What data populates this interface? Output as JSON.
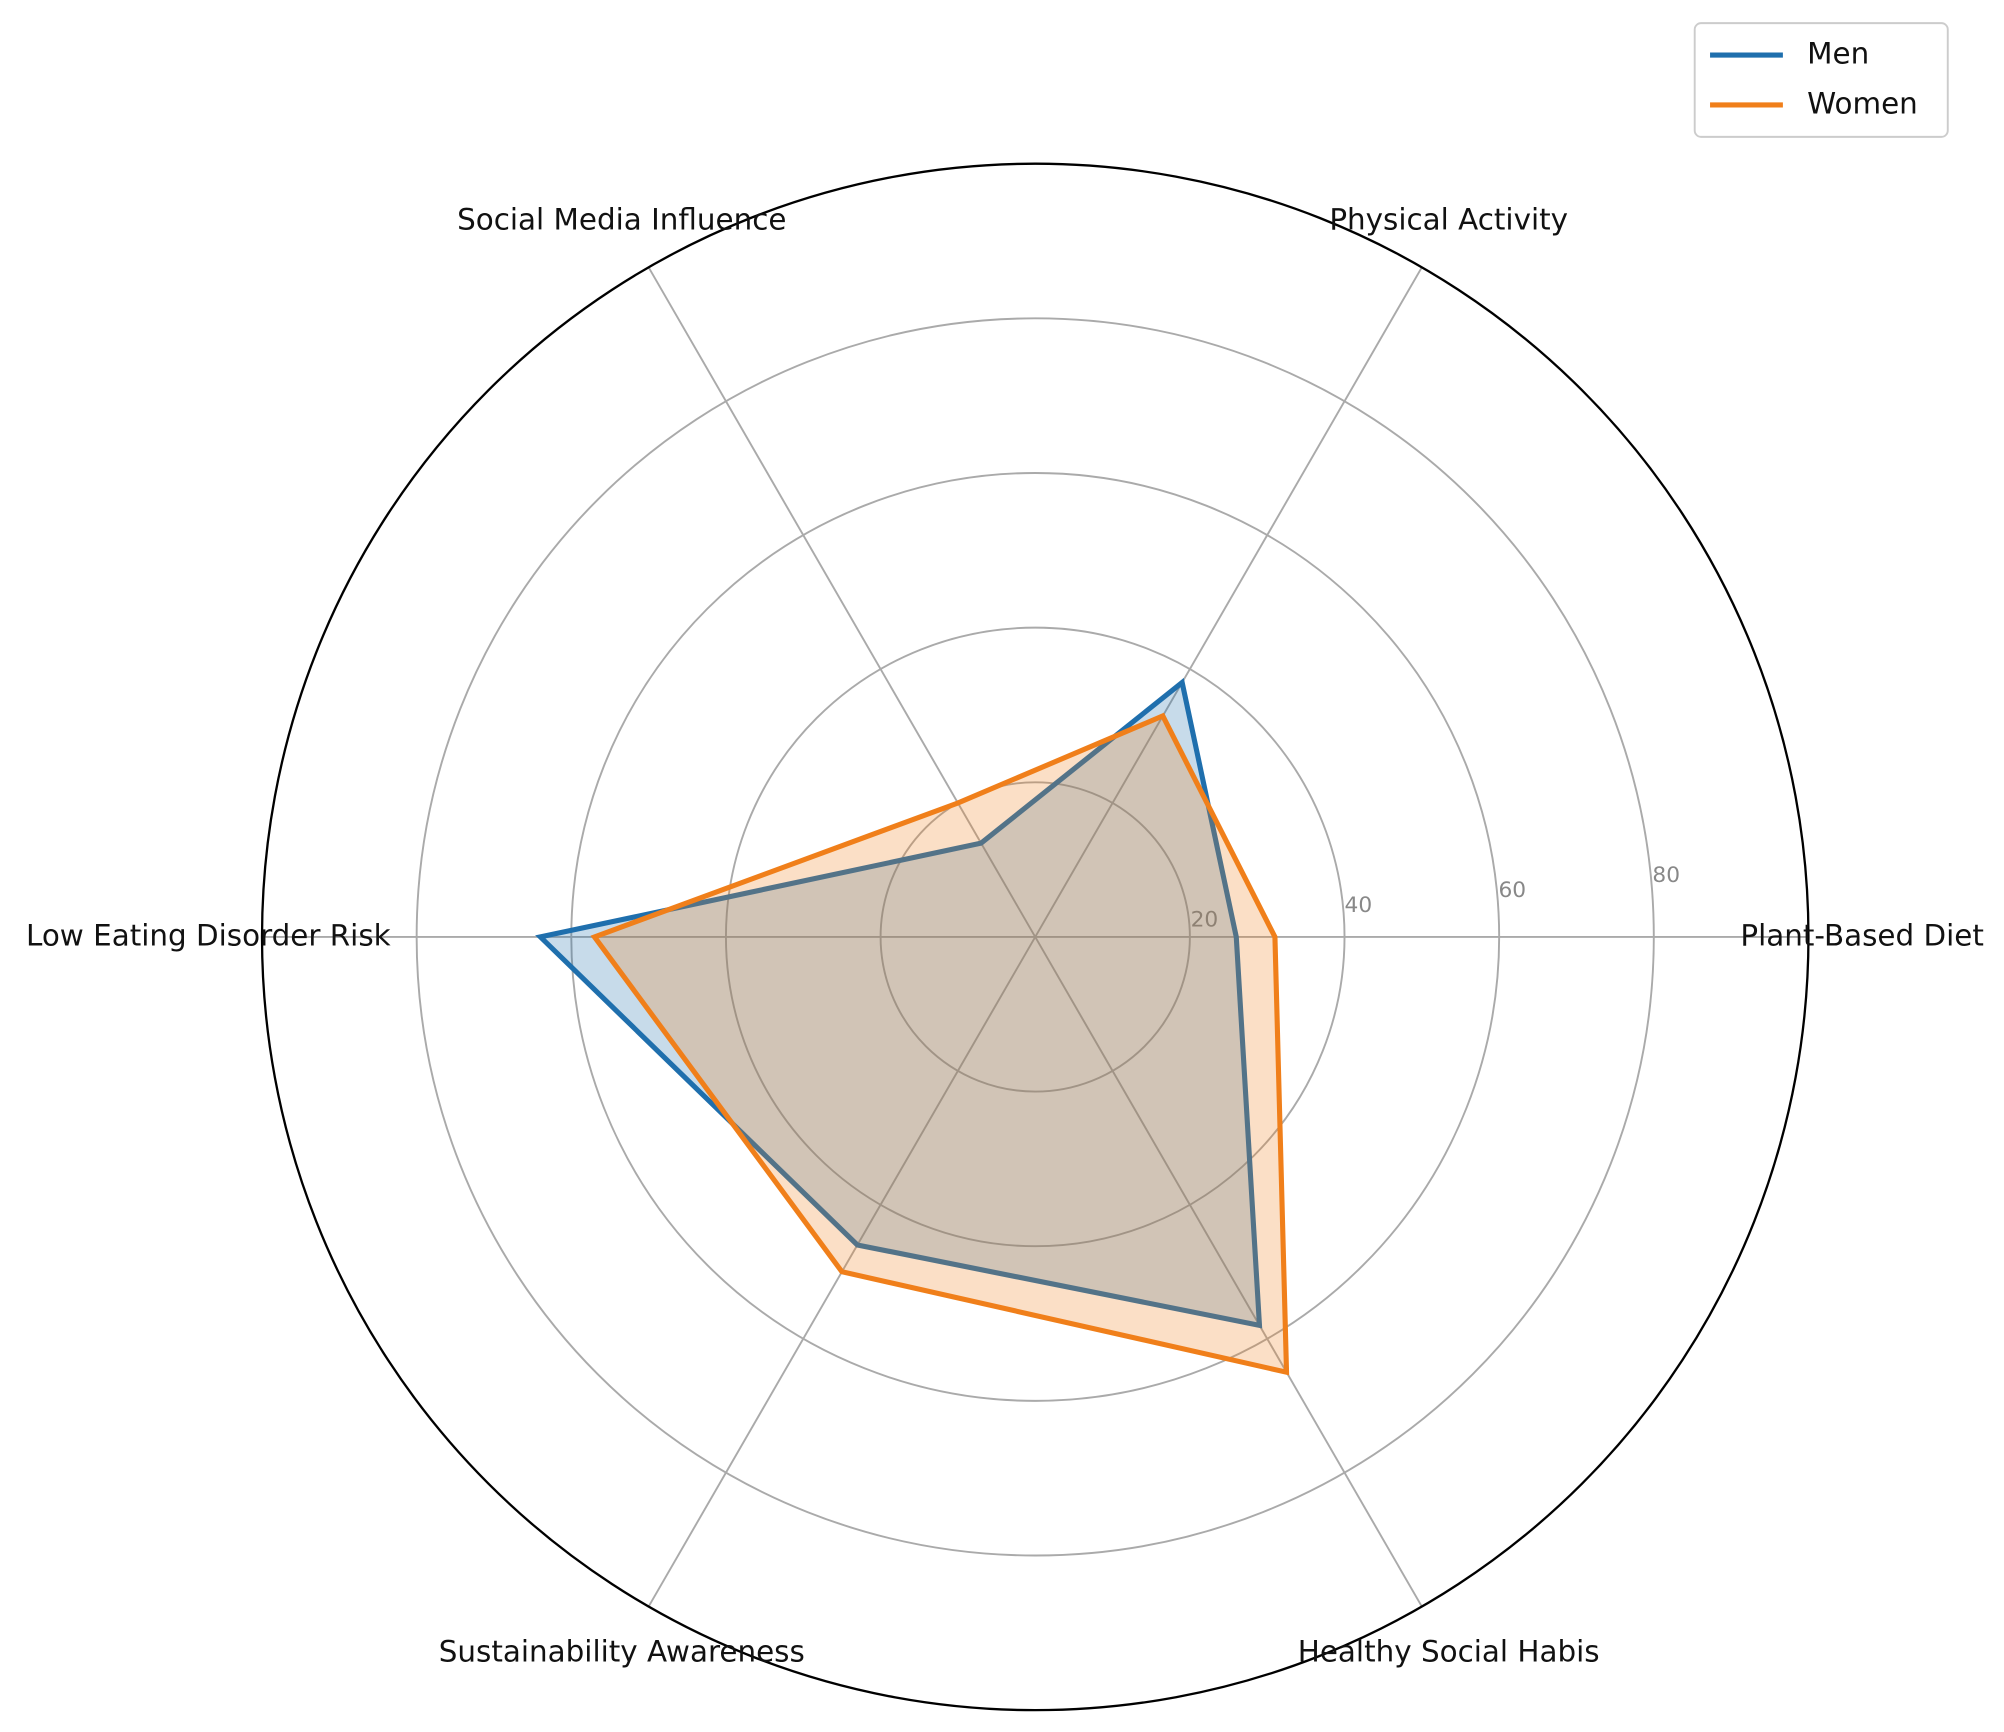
{
  "chart_data": {
    "type": "radar",
    "categories": [
      "Plant-Based Diet",
      "Physical Activity",
      "Social Media Influence",
      "Low Eating Disorder Risk",
      "Sustainability Awareness",
      "Healthy Social Habis"
    ],
    "series": [
      {
        "name": "Men",
        "color": "#1f6fad",
        "values": [
          26,
          38,
          14,
          64,
          46,
          58
        ]
      },
      {
        "name": "Women",
        "color": "#f07f1a",
        "values": [
          31,
          33,
          20,
          57,
          50,
          65
        ]
      }
    ],
    "ylim": [
      0,
      100
    ],
    "yticks": [
      20,
      40,
      60,
      80
    ],
    "grid": true,
    "legend": "upper right"
  }
}
